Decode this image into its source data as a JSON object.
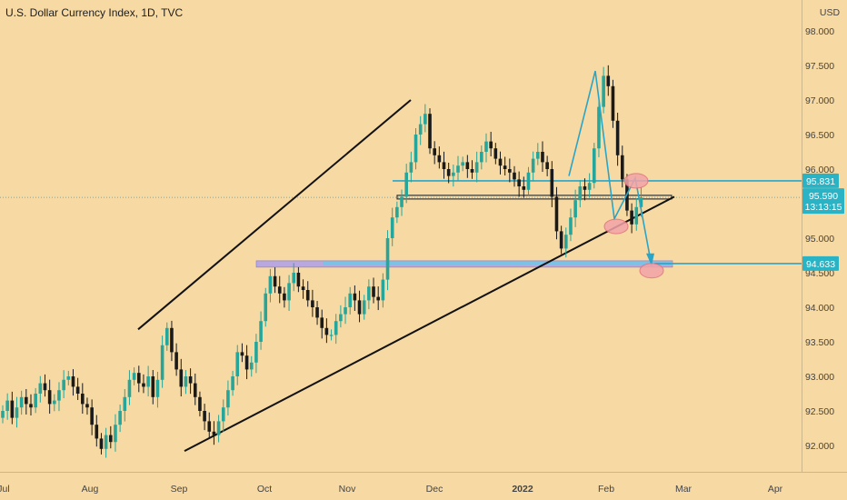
{
  "title": "U.S. Dollar Currency Index, 1D, TVC",
  "colors": {
    "background": "#f7d9a3",
    "up": "#26a69a",
    "down": "#1a1a1a",
    "trendline": "#111111",
    "projection": "#2aa5c7",
    "zone": "#b9a8df",
    "ellipse_fill": "#f3a3a8",
    "ellipse_stroke": "#e0707a",
    "tag_bg": "#2ab3c5",
    "tag_text": "#ffffff"
  },
  "chart_data": {
    "type": "candlestick",
    "currency": "USD",
    "y_ticks": [
      "98.000",
      "97.500",
      "97.000",
      "96.500",
      "96.000",
      "95.500",
      "95.000",
      "94.500",
      "94.000",
      "93.500",
      "93.000",
      "92.500",
      "92.000"
    ],
    "ylim": [
      91.7,
      98.35
    ],
    "x_ticks": [
      "Jul",
      "Aug",
      "Sep",
      "Oct",
      "Nov",
      "Dec",
      "2022",
      "Feb",
      "Mar",
      "Apr"
    ],
    "last_price": "95.590",
    "countdown": "13:13:15",
    "levels": [
      {
        "label": "95.831",
        "value": 95.83
      },
      {
        "label": "94.633",
        "value": 94.633
      }
    ],
    "closes": [
      92.5,
      92.65,
      92.4,
      92.55,
      92.7,
      92.6,
      92.55,
      92.75,
      92.9,
      92.8,
      92.6,
      92.65,
      92.8,
      92.95,
      93.0,
      92.85,
      92.75,
      92.6,
      92.55,
      92.3,
      92.1,
      91.95,
      92.15,
      92.05,
      92.3,
      92.5,
      92.7,
      92.95,
      93.05,
      92.9,
      92.85,
      93.0,
      92.7,
      92.95,
      93.45,
      93.7,
      93.35,
      93.1,
      92.85,
      93.0,
      92.9,
      92.7,
      92.5,
      92.35,
      92.2,
      92.15,
      92.35,
      92.55,
      92.8,
      93.0,
      93.35,
      93.3,
      93.1,
      93.2,
      93.5,
      93.8,
      94.2,
      94.45,
      94.3,
      94.2,
      94.1,
      94.35,
      94.5,
      94.3,
      94.25,
      94.1,
      94.0,
      93.85,
      93.7,
      93.6,
      93.6,
      93.8,
      93.9,
      94.0,
      94.2,
      94.1,
      93.9,
      94.1,
      94.3,
      94.15,
      94.1,
      94.4,
      95.0,
      95.3,
      95.45,
      95.6,
      95.95,
      96.1,
      96.5,
      96.65,
      96.8,
      96.3,
      96.2,
      96.1,
      96.0,
      95.9,
      95.95,
      96.05,
      96.1,
      96.0,
      95.95,
      96.1,
      96.25,
      96.4,
      96.3,
      96.15,
      96.05,
      96.0,
      95.95,
      95.85,
      95.75,
      95.7,
      95.95,
      96.15,
      96.25,
      96.1,
      96.0,
      95.6,
      95.1,
      94.85,
      95.05,
      95.3,
      95.55,
      95.75,
      95.7,
      95.8,
      96.3,
      96.9,
      97.35,
      97.2,
      96.7,
      96.2,
      95.85,
      95.4,
      95.2,
      95.45,
      95.59
    ]
  }
}
